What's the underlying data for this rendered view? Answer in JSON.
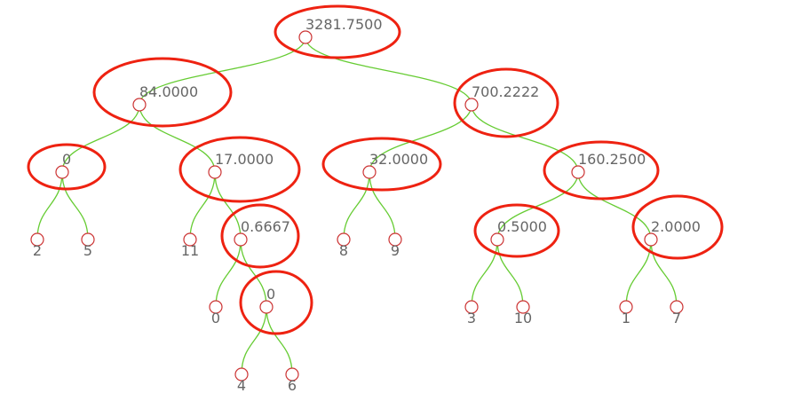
{
  "colors": {
    "link": "#66cc33",
    "node_stroke": "#cc3333",
    "node_fill": "#ffffff",
    "highlight": "#ee2211",
    "label": "#666666"
  },
  "tree": {
    "id": "root",
    "label": "3281.7500",
    "highlighted": true,
    "children": [
      {
        "id": "a",
        "label": "84.0000",
        "highlighted": true,
        "children": [
          {
            "id": "c",
            "label": "0",
            "highlighted": true,
            "children": [
              {
                "id": "l2",
                "label": "2"
              },
              {
                "id": "l5",
                "label": "5"
              }
            ]
          },
          {
            "id": "d",
            "label": "17.0000",
            "highlighted": true,
            "children": [
              {
                "id": "l11",
                "label": "11"
              },
              {
                "id": "e",
                "label": "0.6667",
                "highlighted": true,
                "children": [
                  {
                    "id": "l0",
                    "label": "0"
                  },
                  {
                    "id": "f",
                    "label": "0",
                    "highlighted": true,
                    "children": [
                      {
                        "id": "l4",
                        "label": "4"
                      },
                      {
                        "id": "l6",
                        "label": "6"
                      }
                    ]
                  }
                ]
              }
            ]
          }
        ]
      },
      {
        "id": "b",
        "label": "700.2222",
        "highlighted": true,
        "children": [
          {
            "id": "g",
            "label": "32.0000",
            "highlighted": true,
            "children": [
              {
                "id": "l8",
                "label": "8"
              },
              {
                "id": "l9",
                "label": "9"
              }
            ]
          },
          {
            "id": "h",
            "label": "160.2500",
            "highlighted": true,
            "children": [
              {
                "id": "i",
                "label": "0.5000",
                "highlighted": true,
                "children": [
                  {
                    "id": "l3",
                    "label": "3"
                  },
                  {
                    "id": "l10",
                    "label": "10"
                  }
                ]
              },
              {
                "id": "j",
                "label": "2.0000",
                "highlighted": true,
                "children": [
                  {
                    "id": "l1",
                    "label": "1"
                  },
                  {
                    "id": "l7",
                    "label": "7"
                  }
                ]
              }
            ]
          }
        ]
      }
    ]
  }
}
